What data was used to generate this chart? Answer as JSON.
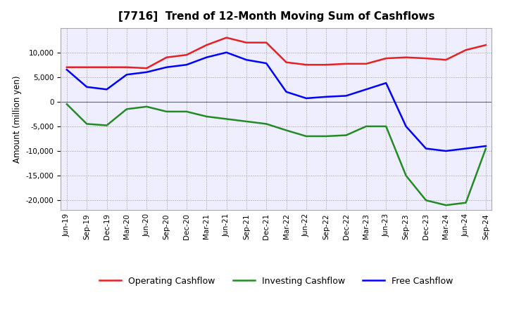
{
  "title": "[7716]  Trend of 12-Month Moving Sum of Cashflows",
  "ylabel": "Amount (million yen)",
  "ylim": [
    -22000,
    15000
  ],
  "yticks": [
    -20000,
    -15000,
    -10000,
    -5000,
    0,
    5000,
    10000
  ],
  "labels": [
    "Jun-19",
    "Sep-19",
    "Dec-19",
    "Mar-20",
    "Jun-20",
    "Sep-20",
    "Dec-20",
    "Mar-21",
    "Jun-21",
    "Sep-21",
    "Dec-21",
    "Mar-22",
    "Jun-22",
    "Sep-22",
    "Dec-22",
    "Mar-23",
    "Jun-23",
    "Sep-23",
    "Dec-23",
    "Mar-24",
    "Jun-24",
    "Sep-24"
  ],
  "operating": [
    7000,
    7000,
    7000,
    7000,
    6800,
    9000,
    9500,
    11500,
    13000,
    12000,
    12000,
    8000,
    7500,
    7500,
    7700,
    7700,
    8800,
    9000,
    8800,
    8500,
    10500,
    11500
  ],
  "investing": [
    -500,
    -4500,
    -4800,
    -1500,
    -1000,
    -2000,
    -2000,
    -3000,
    -3500,
    -4000,
    -4500,
    -5800,
    -7000,
    -7000,
    -6800,
    -5000,
    -5000,
    -15000,
    -20000,
    -21000,
    -20500,
    -9500
  ],
  "free": [
    6500,
    3000,
    2500,
    5500,
    6000,
    7000,
    7500,
    9000,
    10000,
    8500,
    7800,
    2000,
    700,
    1000,
    1200,
    2500,
    3800,
    -5000,
    -9500,
    -10000,
    -9500,
    -9000
  ],
  "operating_color": "#e82020",
  "investing_color": "#228B22",
  "free_color": "#0000ff",
  "bg_color": "#eeeeff",
  "grid_color": "#999999",
  "linewidth": 1.8,
  "title_fontsize": 11,
  "legend_fontsize": 9,
  "tick_fontsize": 7.5
}
